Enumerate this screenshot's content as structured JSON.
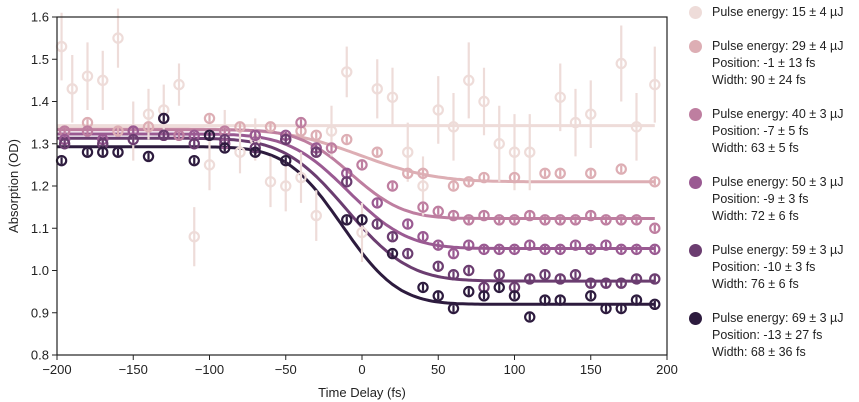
{
  "chart_data": {
    "type": "scatter",
    "xlabel": "Time Delay (fs)",
    "ylabel": "Absorption (OD)",
    "xlim": [
      -200,
      200
    ],
    "ylim": [
      0.8,
      1.6
    ],
    "xticks": [
      "−200",
      "−150",
      "−100",
      "−50",
      "0",
      "50",
      "100",
      "150",
      "200"
    ],
    "yticks": [
      "0.8",
      "0.9",
      "1.0",
      "1.1",
      "1.2",
      "1.3",
      "1.4",
      "1.5",
      "1.6"
    ],
    "legend_position": "right",
    "series": [
      {
        "color": "#eedcd9",
        "legend": [
          "Pulse energy: 15 ± 4 µJ"
        ],
        "fit": {
          "type": "constant",
          "y": 1.343
        },
        "points": [
          {
            "x": -197,
            "y": 1.53,
            "err": 0.08
          },
          {
            "x": -190,
            "y": 1.43,
            "err": 0.08
          },
          {
            "x": -180,
            "y": 1.46,
            "err": 0.08
          },
          {
            "x": -170,
            "y": 1.45,
            "err": 0.07
          },
          {
            "x": -160,
            "y": 1.55,
            "err": 0.07
          },
          {
            "x": -150,
            "y": 1.33,
            "err": 0.07
          },
          {
            "x": -140,
            "y": 1.37,
            "err": 0.06
          },
          {
            "x": -130,
            "y": 1.38,
            "err": 0.06
          },
          {
            "x": -120,
            "y": 1.44,
            "err": 0.05
          },
          {
            "x": -110,
            "y": 1.08,
            "err": 0.07
          },
          {
            "x": -100,
            "y": 1.25,
            "err": 0.06
          },
          {
            "x": -90,
            "y": 1.33,
            "err": 0.05
          },
          {
            "x": -80,
            "y": 1.28,
            "err": 0.05
          },
          {
            "x": -70,
            "y": 1.31,
            "err": 0.05
          },
          {
            "x": -60,
            "y": 1.21,
            "err": 0.06
          },
          {
            "x": -50,
            "y": 1.2,
            "err": 0.06
          },
          {
            "x": -40,
            "y": 1.22,
            "err": 0.06
          },
          {
            "x": -30,
            "y": 1.13,
            "err": 0.06
          },
          {
            "x": -20,
            "y": 1.33,
            "err": 0.06
          },
          {
            "x": -10,
            "y": 1.47,
            "err": 0.06
          },
          {
            "x": 0,
            "y": 1.09,
            "err": 0.07
          },
          {
            "x": 10,
            "y": 1.43,
            "err": 0.07
          },
          {
            "x": 20,
            "y": 1.41,
            "err": 0.07
          },
          {
            "x": 30,
            "y": 1.28,
            "err": 0.07
          },
          {
            "x": 40,
            "y": 1.2,
            "err": 0.07
          },
          {
            "x": 50,
            "y": 1.38,
            "err": 0.08
          },
          {
            "x": 60,
            "y": 1.34,
            "err": 0.08
          },
          {
            "x": 70,
            "y": 1.45,
            "err": 0.09
          },
          {
            "x": 80,
            "y": 1.4,
            "err": 0.08
          },
          {
            "x": 90,
            "y": 1.3,
            "err": 0.09
          },
          {
            "x": 100,
            "y": 1.28,
            "err": 0.09
          },
          {
            "x": 110,
            "y": 1.28,
            "err": 0.09
          },
          {
            "x": 130,
            "y": 1.41,
            "err": 0.08
          },
          {
            "x": 140,
            "y": 1.35,
            "err": 0.08
          },
          {
            "x": 150,
            "y": 1.37,
            "err": 0.08
          },
          {
            "x": 170,
            "y": 1.49,
            "err": 0.09
          },
          {
            "x": 180,
            "y": 1.34,
            "err": 0.08
          },
          {
            "x": 192,
            "y": 1.44,
            "err": 0.09
          }
        ]
      },
      {
        "color": "#ddaeb4",
        "legend": [
          "Pulse energy: 29 ± 4 µJ",
          "Position: -1 ± 13 fs",
          "Width: 90 ± 24 fs"
        ],
        "fit": {
          "type": "erf",
          "y_before": 1.335,
          "y_after": 1.21,
          "position": -1,
          "width": 90
        },
        "points": [
          {
            "x": -195,
            "y": 1.33
          },
          {
            "x": -180,
            "y": 1.35
          },
          {
            "x": -160,
            "y": 1.33
          },
          {
            "x": -140,
            "y": 1.34
          },
          {
            "x": -130,
            "y": 1.36
          },
          {
            "x": -100,
            "y": 1.36
          },
          {
            "x": -80,
            "y": 1.34
          },
          {
            "x": -60,
            "y": 1.34
          },
          {
            "x": -40,
            "y": 1.33
          },
          {
            "x": -30,
            "y": 1.32
          },
          {
            "x": -10,
            "y": 1.31
          },
          {
            "x": 10,
            "y": 1.28
          },
          {
            "x": 30,
            "y": 1.23
          },
          {
            "x": 40,
            "y": 1.23
          },
          {
            "x": 60,
            "y": 1.2
          },
          {
            "x": 70,
            "y": 1.21
          },
          {
            "x": 80,
            "y": 1.22
          },
          {
            "x": 100,
            "y": 1.22
          },
          {
            "x": 120,
            "y": 1.23
          },
          {
            "x": 130,
            "y": 1.23
          },
          {
            "x": 150,
            "y": 1.23
          },
          {
            "x": 170,
            "y": 1.24
          },
          {
            "x": 192,
            "y": 1.21
          }
        ]
      },
      {
        "color": "#be7ea0",
        "legend": [
          "Pulse energy: 40 ± 3 µJ",
          "Position: -7 ± 5 fs",
          "Width: 63 ± 5 fs"
        ],
        "fit": {
          "type": "erf",
          "y_before": 1.333,
          "y_after": 1.123,
          "position": -7,
          "width": 63
        },
        "points": [
          {
            "x": -195,
            "y": 1.33
          },
          {
            "x": -180,
            "y": 1.33
          },
          {
            "x": -150,
            "y": 1.33
          },
          {
            "x": -120,
            "y": 1.32
          },
          {
            "x": -90,
            "y": 1.33
          },
          {
            "x": -70,
            "y": 1.32
          },
          {
            "x": -50,
            "y": 1.31
          },
          {
            "x": -40,
            "y": 1.35
          },
          {
            "x": -20,
            "y": 1.29
          },
          {
            "x": 0,
            "y": 1.25
          },
          {
            "x": 20,
            "y": 1.2
          },
          {
            "x": 40,
            "y": 1.15
          },
          {
            "x": 50,
            "y": 1.14
          },
          {
            "x": 60,
            "y": 1.13
          },
          {
            "x": 70,
            "y": 1.12
          },
          {
            "x": 80,
            "y": 1.13
          },
          {
            "x": 90,
            "y": 1.12
          },
          {
            "x": 100,
            "y": 1.12
          },
          {
            "x": 110,
            "y": 1.13
          },
          {
            "x": 120,
            "y": 1.12
          },
          {
            "x": 130,
            "y": 1.12
          },
          {
            "x": 140,
            "y": 1.12
          },
          {
            "x": 150,
            "y": 1.13
          },
          {
            "x": 160,
            "y": 1.12
          },
          {
            "x": 170,
            "y": 1.12
          },
          {
            "x": 180,
            "y": 1.12
          },
          {
            "x": 192,
            "y": 1.1
          }
        ]
      },
      {
        "color": "#9a5a92",
        "legend": [
          "Pulse energy: 50 ± 3 µJ",
          "Position: -9 ± 3 fs",
          "Width: 72 ± 6 fs"
        ],
        "fit": {
          "type": "erf",
          "y_before": 1.323,
          "y_after": 1.052,
          "position": -9,
          "width": 72
        },
        "points": [
          {
            "x": -195,
            "y": 1.31
          },
          {
            "x": -170,
            "y": 1.31
          },
          {
            "x": -150,
            "y": 1.33
          },
          {
            "x": -130,
            "y": 1.32
          },
          {
            "x": -110,
            "y": 1.32
          },
          {
            "x": -90,
            "y": 1.3
          },
          {
            "x": -70,
            "y": 1.32
          },
          {
            "x": -50,
            "y": 1.32
          },
          {
            "x": -30,
            "y": 1.29
          },
          {
            "x": -10,
            "y": 1.23
          },
          {
            "x": 10,
            "y": 1.16
          },
          {
            "x": 30,
            "y": 1.11
          },
          {
            "x": 40,
            "y": 1.08
          },
          {
            "x": 50,
            "y": 1.06
          },
          {
            "x": 60,
            "y": 1.04
          },
          {
            "x": 70,
            "y": 1.06
          },
          {
            "x": 80,
            "y": 1.05
          },
          {
            "x": 90,
            "y": 1.05
          },
          {
            "x": 100,
            "y": 1.05
          },
          {
            "x": 110,
            "y": 1.06
          },
          {
            "x": 120,
            "y": 1.05
          },
          {
            "x": 130,
            "y": 1.05
          },
          {
            "x": 140,
            "y": 1.06
          },
          {
            "x": 150,
            "y": 1.05
          },
          {
            "x": 160,
            "y": 1.06
          },
          {
            "x": 170,
            "y": 1.05
          },
          {
            "x": 180,
            "y": 1.05
          },
          {
            "x": 192,
            "y": 1.05
          }
        ]
      },
      {
        "color": "#6b3d70",
        "legend": [
          "Pulse energy: 59 ± 3 µJ",
          "Position: -10 ± 3 fs",
          "Width: 76 ± 6 fs"
        ],
        "fit": {
          "type": "erf",
          "y_before": 1.313,
          "y_after": 0.975,
          "position": -10,
          "width": 76
        },
        "points": [
          {
            "x": -195,
            "y": 1.3
          },
          {
            "x": -170,
            "y": 1.3
          },
          {
            "x": -150,
            "y": 1.31
          },
          {
            "x": -130,
            "y": 1.32
          },
          {
            "x": -110,
            "y": 1.3
          },
          {
            "x": -90,
            "y": 1.31
          },
          {
            "x": -70,
            "y": 1.29
          },
          {
            "x": -50,
            "y": 1.31
          },
          {
            "x": -30,
            "y": 1.28
          },
          {
            "x": -10,
            "y": 1.21
          },
          {
            "x": 10,
            "y": 1.11
          },
          {
            "x": 20,
            "y": 1.08
          },
          {
            "x": 30,
            "y": 1.04
          },
          {
            "x": 50,
            "y": 1.01
          },
          {
            "x": 60,
            "y": 0.99
          },
          {
            "x": 70,
            "y": 1.0
          },
          {
            "x": 80,
            "y": 0.96
          },
          {
            "x": 90,
            "y": 0.99
          },
          {
            "x": 100,
            "y": 0.96
          },
          {
            "x": 110,
            "y": 0.98
          },
          {
            "x": 120,
            "y": 0.99
          },
          {
            "x": 130,
            "y": 0.98
          },
          {
            "x": 140,
            "y": 0.99
          },
          {
            "x": 150,
            "y": 0.97
          },
          {
            "x": 160,
            "y": 0.97
          },
          {
            "x": 170,
            "y": 0.97
          },
          {
            "x": 180,
            "y": 0.98
          },
          {
            "x": 192,
            "y": 0.98
          }
        ]
      },
      {
        "color": "#2d1b3e",
        "legend": [
          "Pulse energy: 69 ± 3 µJ",
          "Position: -13 ± 27 fs",
          "Width: 68 ± 36 fs"
        ],
        "fit": {
          "type": "erf",
          "y_before": 1.293,
          "y_after": 0.92,
          "position": -13,
          "width": 68
        },
        "points": [
          {
            "x": -197,
            "y": 1.26
          },
          {
            "x": -180,
            "y": 1.28
          },
          {
            "x": -170,
            "y": 1.28
          },
          {
            "x": -160,
            "y": 1.28
          },
          {
            "x": -140,
            "y": 1.27
          },
          {
            "x": -130,
            "y": 1.36
          },
          {
            "x": -110,
            "y": 1.26
          },
          {
            "x": -100,
            "y": 1.32
          },
          {
            "x": -90,
            "y": 1.29
          },
          {
            "x": -70,
            "y": 1.28
          },
          {
            "x": -50,
            "y": 1.26
          },
          {
            "x": -10,
            "y": 1.12
          },
          {
            "x": 0,
            "y": 1.12
          },
          {
            "x": 20,
            "y": 1.04
          },
          {
            "x": 40,
            "y": 0.96
          },
          {
            "x": 50,
            "y": 0.94
          },
          {
            "x": 60,
            "y": 0.91
          },
          {
            "x": 70,
            "y": 0.95
          },
          {
            "x": 80,
            "y": 0.94
          },
          {
            "x": 90,
            "y": 0.96
          },
          {
            "x": 100,
            "y": 0.94
          },
          {
            "x": 110,
            "y": 0.89
          },
          {
            "x": 120,
            "y": 0.93
          },
          {
            "x": 130,
            "y": 0.93
          },
          {
            "x": 150,
            "y": 0.94
          },
          {
            "x": 160,
            "y": 0.91
          },
          {
            "x": 170,
            "y": 0.91
          },
          {
            "x": 180,
            "y": 0.93
          },
          {
            "x": 192,
            "y": 0.92
          }
        ]
      }
    ]
  }
}
